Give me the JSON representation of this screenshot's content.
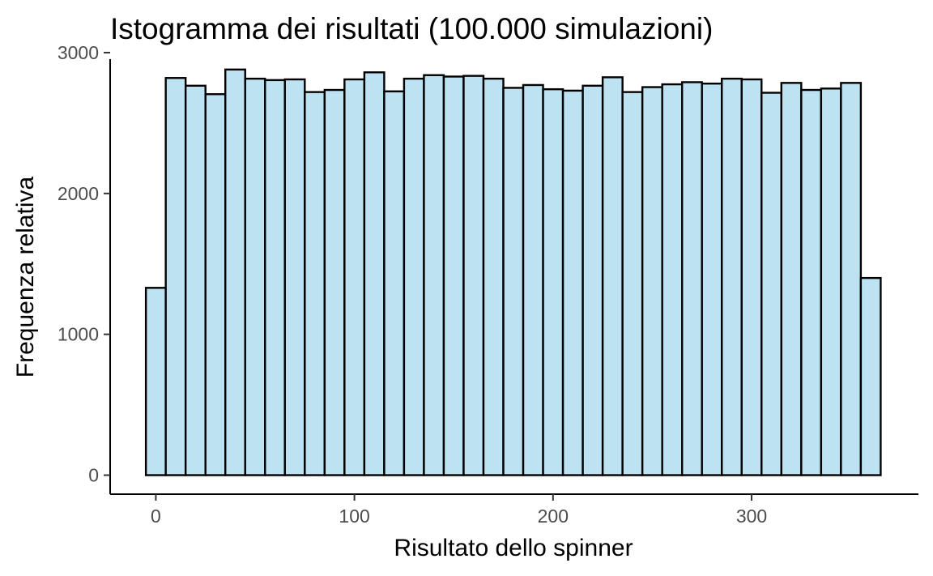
{
  "chart_data": {
    "type": "bar",
    "title": "Istogramma dei risultati (100.000 simulazioni)",
    "xlabel": "Risultato dello spinner",
    "ylabel": "Frequenza relativa",
    "bin_width": 10,
    "bin_centers": [
      0,
      10,
      20,
      30,
      40,
      50,
      60,
      70,
      80,
      90,
      100,
      110,
      120,
      130,
      140,
      150,
      160,
      170,
      180,
      190,
      200,
      210,
      220,
      230,
      240,
      250,
      260,
      270,
      280,
      290,
      300,
      310,
      320,
      330,
      340,
      350,
      360
    ],
    "values": [
      1330,
      2820,
      2765,
      2705,
      2880,
      2815,
      2805,
      2810,
      2720,
      2735,
      2810,
      2860,
      2725,
      2815,
      2840,
      2830,
      2835,
      2815,
      2750,
      2770,
      2740,
      2730,
      2765,
      2825,
      2720,
      2755,
      2775,
      2790,
      2780,
      2815,
      2810,
      2715,
      2785,
      2735,
      2745,
      2785,
      1400
    ],
    "xlim": [
      -23,
      384
    ],
    "ylim": [
      -135,
      3040
    ],
    "x_ticks": [
      0,
      100,
      200,
      300
    ],
    "x_tick_labels": [
      "0",
      "100",
      "200",
      "300"
    ],
    "y_ticks": [
      0,
      1000,
      2000,
      3000
    ],
    "y_tick_labels": [
      "0",
      "1000",
      "2000",
      "3000"
    ],
    "grid": false,
    "legend": "none",
    "bar_fill": "#bde2f2",
    "bar_stroke": "#000000"
  }
}
